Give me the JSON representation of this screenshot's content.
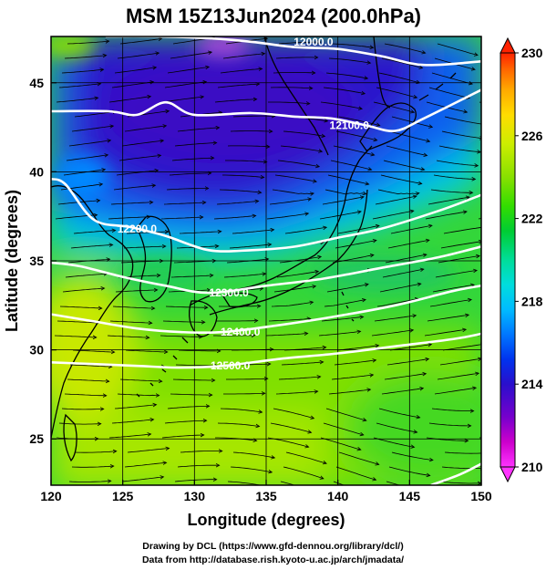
{
  "title": "MSM 15Z13Jun2024 (200.0hPa)",
  "credits": {
    "line1": "Drawing by DCL (https://www.gfd-dennou.org/library/dcl/)",
    "line2": "Data from http://database.rish.kyoto-u.ac.jp/arch/jmadata/"
  },
  "map": {
    "xlabel": "Longitude (degrees)",
    "ylabel": "Latitude  (degrees)",
    "lon_range": [
      120,
      150
    ],
    "lat_range": [
      22.4,
      47.6
    ],
    "lon_ticks": [
      120,
      125,
      130,
      135,
      140,
      145,
      150
    ],
    "lat_ticks": [
      25,
      30,
      35,
      40,
      45
    ],
    "lon_tick_labels": [
      "120",
      "125",
      "130",
      "135",
      "140",
      "145",
      "150"
    ],
    "lat_tick_labels": [
      "25",
      "30",
      "35",
      "40",
      "45"
    ],
    "field": "temperature (shaded) with geopotential height contours and streamlines",
    "contours": [
      {
        "label": "12000.0",
        "points": [
          [
            123.8,
            47.6
          ],
          [
            127,
            47.6
          ],
          [
            131,
            47.5
          ],
          [
            134,
            47.3
          ],
          [
            137,
            47.0
          ],
          [
            140,
            46.9
          ],
          [
            143,
            46.5
          ],
          [
            146,
            46.0
          ],
          [
            150,
            46.2
          ]
        ],
        "label_at": [
          138.3,
          47.3
        ]
      },
      {
        "label": "12100.0",
        "points": [
          [
            120,
            43.4
          ],
          [
            124,
            43.4
          ],
          [
            126,
            43.2
          ],
          [
            128,
            43.9
          ],
          [
            130,
            43.2
          ],
          [
            134,
            43.3
          ],
          [
            137,
            43.1
          ],
          [
            139.5,
            43.0
          ],
          [
            142,
            42.6
          ],
          [
            144,
            42.3
          ],
          [
            146,
            43.0
          ],
          [
            150,
            44.6
          ]
        ],
        "label_at": [
          140.8,
          42.6
        ]
      },
      {
        "label": "12200.0",
        "points": [
          [
            120,
            39.6
          ],
          [
            121,
            39.3
          ],
          [
            123,
            37.3
          ],
          [
            125.5,
            36.9
          ],
          [
            128,
            36.4
          ],
          [
            131,
            35.6
          ],
          [
            134,
            35.6
          ],
          [
            137,
            35.8
          ],
          [
            140,
            36.3
          ],
          [
            143,
            36.8
          ],
          [
            147,
            37.8
          ],
          [
            150,
            38.7
          ]
        ],
        "label_at": [
          126,
          36.8
        ]
      },
      {
        "label": "12300.0",
        "points": [
          [
            120,
            34.9
          ],
          [
            122,
            34.7
          ],
          [
            125,
            34.1
          ],
          [
            128,
            33.6
          ],
          [
            131,
            33.2
          ],
          [
            135,
            33.6
          ],
          [
            139,
            34.0
          ],
          [
            143,
            34.6
          ],
          [
            147,
            35.2
          ],
          [
            150,
            35.8
          ]
        ],
        "label_at": [
          132.4,
          33.2
        ]
      },
      {
        "label": "12400.0",
        "points": [
          [
            120,
            32.0
          ],
          [
            123,
            31.6
          ],
          [
            126,
            31.2
          ],
          [
            129,
            31.0
          ],
          [
            132,
            31.0
          ],
          [
            136,
            31.4
          ],
          [
            140,
            31.9
          ],
          [
            144,
            32.5
          ],
          [
            148,
            33.3
          ],
          [
            150,
            33.6
          ]
        ],
        "label_at": [
          133.2,
          31.0
        ]
      },
      {
        "label": "12500.0",
        "points": [
          [
            120,
            29.3
          ],
          [
            123,
            29.2
          ],
          [
            126,
            29.1
          ],
          [
            129,
            29.0
          ],
          [
            132,
            29.1
          ],
          [
            136,
            29.5
          ],
          [
            140,
            29.8
          ],
          [
            144,
            30.2
          ],
          [
            148,
            30.6
          ],
          [
            150,
            30.9
          ]
        ],
        "label_at": [
          132.5,
          29.1
        ]
      },
      {
        "label": "",
        "points": [
          [
            146.5,
            22.4
          ],
          [
            148.5,
            23.0
          ],
          [
            150,
            23.6
          ]
        ],
        "label_at": null
      }
    ]
  },
  "colorbar": {
    "min": 210,
    "max": 230,
    "tick_values": [
      210,
      214,
      218,
      222,
      226,
      230
    ],
    "tick_labels": [
      "210",
      "214",
      "218",
      "222",
      "226",
      "230"
    ],
    "colors": [
      "#ff33ff",
      "#cc00cc",
      "#7700cc",
      "#2a0fcc",
      "#0033ee",
      "#0077ff",
      "#00bbff",
      "#00dddd",
      "#00dd99",
      "#00cc33",
      "#33dd00",
      "#88e000",
      "#ccee00",
      "#ffdd00",
      "#ffaa00",
      "#ff6600",
      "#ff2200"
    ]
  }
}
